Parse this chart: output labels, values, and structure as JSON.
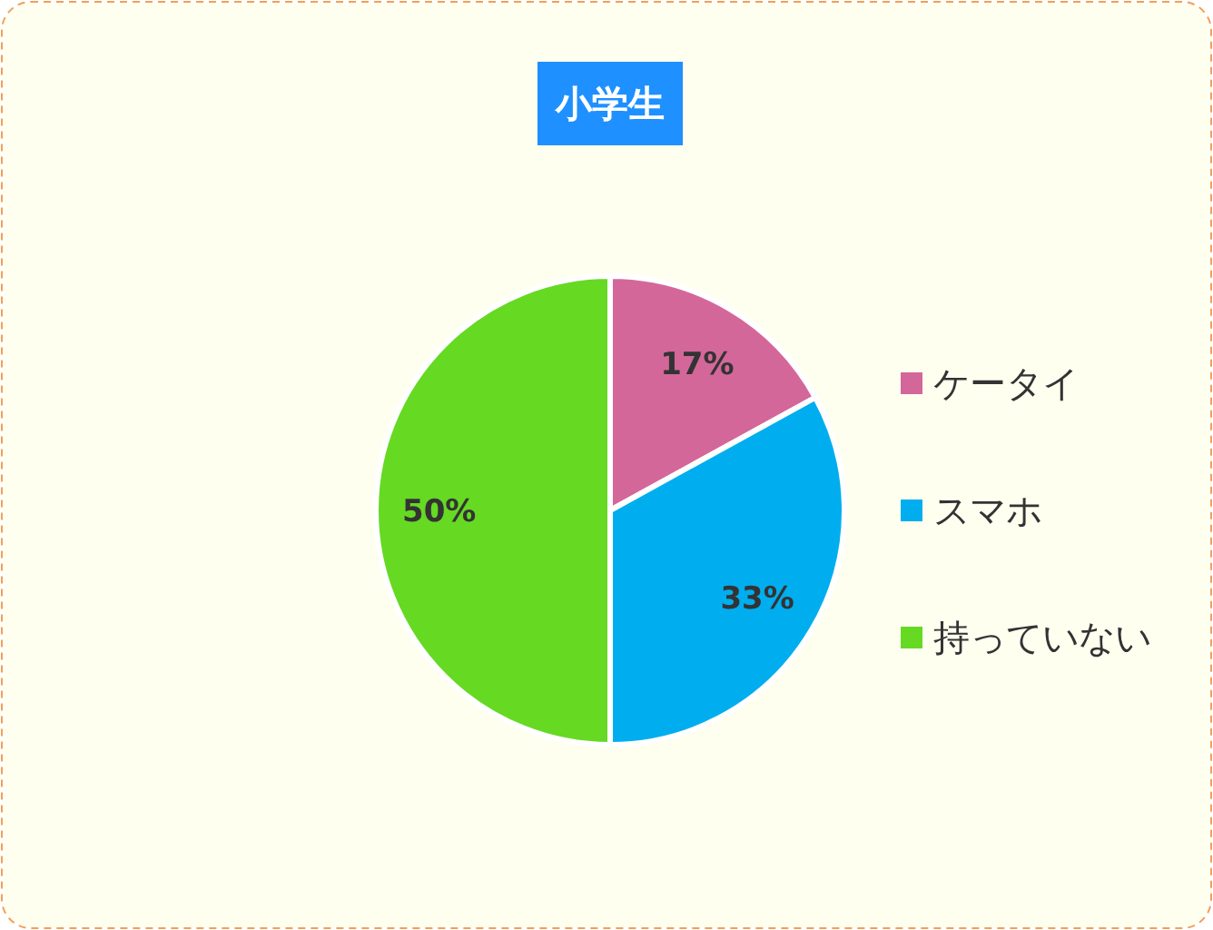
{
  "chart_data": {
    "type": "pie",
    "title": "小学生",
    "categories": [
      "ケータイ",
      "スマホ",
      "持っていない"
    ],
    "values": [
      17,
      33,
      50
    ],
    "colors": [
      "#d4679a",
      "#00aeef",
      "#66d923"
    ],
    "value_labels": [
      "17%",
      "33%",
      "50%"
    ],
    "legend": "right"
  }
}
